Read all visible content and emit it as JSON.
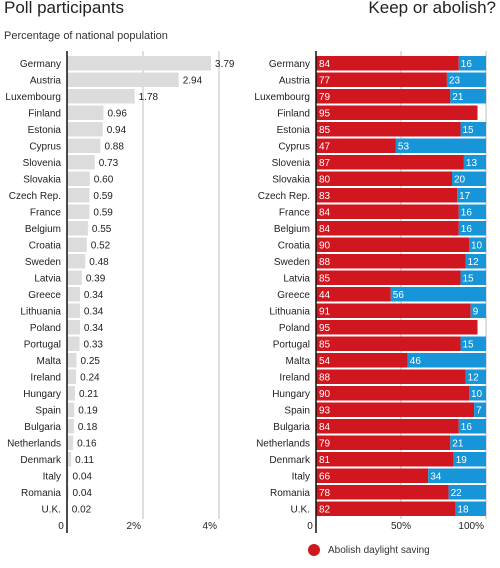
{
  "header": {
    "left_title": "Poll participants",
    "subtitle": "Percentage of national population",
    "right_title": "Keep or abolish?"
  },
  "legend": {
    "label": "Abolish daylight saving"
  },
  "colors": {
    "abolish": "#d0161f",
    "keep": "#1695d8",
    "participants": "#dcdcdc"
  },
  "chart_data": [
    {
      "type": "bar",
      "orientation": "horizontal",
      "title": "Poll participants",
      "subtitle": "Percentage of national population",
      "categories": [
        "Germany",
        "Austria",
        "Luxembourg",
        "Finland",
        "Estonia",
        "Cyprus",
        "Slovenia",
        "Slovakia",
        "Czech Rep.",
        "France",
        "Belgium",
        "Croatia",
        "Sweden",
        "Latvia",
        "Greece",
        "Lithuania",
        "Poland",
        "Portugal",
        "Malta",
        "Ireland",
        "Hungary",
        "Spain",
        "Bulgaria",
        "Netherlands",
        "Denmark",
        "Italy",
        "Romania",
        "U.K."
      ],
      "values": [
        3.79,
        2.94,
        1.78,
        0.96,
        0.94,
        0.88,
        0.73,
        0.6,
        0.59,
        0.59,
        0.55,
        0.52,
        0.48,
        0.39,
        0.34,
        0.34,
        0.34,
        0.33,
        0.25,
        0.24,
        0.21,
        0.19,
        0.18,
        0.16,
        0.11,
        0.04,
        0.04,
        0.02
      ],
      "labels": [
        "3.79",
        "2.94",
        "1.78",
        "0.96",
        "0.94",
        "0.88",
        "0.73",
        "0.60",
        "0.59",
        "0.59",
        "0.55",
        "0.52",
        "0.48",
        "0.39",
        "0.34",
        "0.34",
        "0.34",
        "0.33",
        "0.25",
        "0.24",
        "0.21",
        "0.19",
        "0.18",
        "0.16",
        "0.11",
        "0.04",
        "0.04",
        "0.02"
      ],
      "xlim": [
        0,
        4
      ],
      "ticks": [
        {
          "value": 0,
          "label": "0"
        },
        {
          "value": 2,
          "label": "2%"
        },
        {
          "value": 4,
          "label": "4%"
        }
      ],
      "gridlines": [
        2,
        4
      ]
    },
    {
      "type": "bar",
      "stacked": true,
      "orientation": "horizontal",
      "title": "Keep or abolish?",
      "categories": [
        "Germany",
        "Austria",
        "Luxembourg",
        "Finland",
        "Estonia",
        "Cyprus",
        "Slovenia",
        "Slovakia",
        "Czech Rep.",
        "France",
        "Belgium",
        "Croatia",
        "Sweden",
        "Latvia",
        "Greece",
        "Lithuania",
        "Poland",
        "Portugal",
        "Malta",
        "Ireland",
        "Hungary",
        "Spain",
        "Bulgaria",
        "Netherlands",
        "Denmark",
        "Italy",
        "Romania",
        "U.K."
      ],
      "series": [
        {
          "name": "Abolish daylight saving",
          "values": [
            84,
            77,
            79,
            95,
            85,
            47,
            87,
            80,
            83,
            84,
            84,
            90,
            88,
            85,
            44,
            91,
            95,
            85,
            54,
            88,
            90,
            93,
            84,
            79,
            81,
            66,
            78,
            82
          ]
        },
        {
          "values": [
            16,
            23,
            21,
            null,
            15,
            53,
            13,
            20,
            17,
            16,
            16,
            10,
            12,
            15,
            56,
            9,
            null,
            15,
            46,
            12,
            10,
            7,
            16,
            21,
            19,
            34,
            22,
            18
          ]
        }
      ],
      "xlim": [
        0,
        100
      ],
      "ticks": [
        {
          "value": 0,
          "label": "0"
        },
        {
          "value": 50,
          "label": "50%"
        },
        {
          "value": 100,
          "label": "100%"
        }
      ],
      "gridlines": [
        50,
        100
      ]
    }
  ]
}
